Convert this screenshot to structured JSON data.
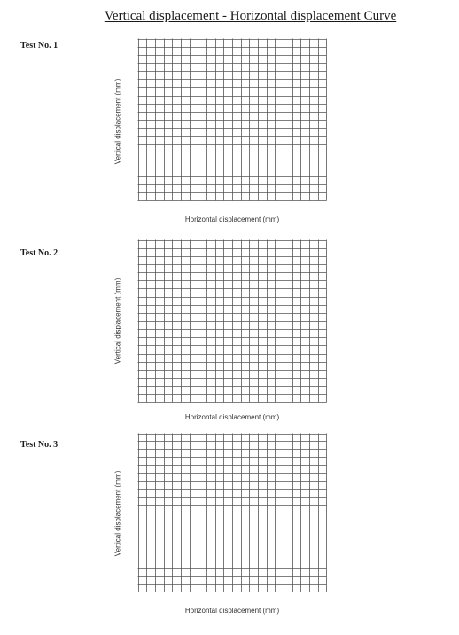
{
  "document": {
    "title": "Vertical displacement - Horizontal displacement Curve"
  },
  "tests": [
    {
      "label": "Test No. 1",
      "y_axis_label": "Vertical displacement (mm)",
      "x_axis_label": "Horizontal displacement (mm)"
    },
    {
      "label": "Test No. 2",
      "y_axis_label": "Vertical displacement (mm)",
      "x_axis_label": "Horizontal displacement (mm)"
    },
    {
      "label": "Test No. 3",
      "y_axis_label": "Vertical displacement (mm)",
      "x_axis_label": "Horizontal displacement (mm)"
    }
  ],
  "grid": {
    "columns": 22,
    "rows": 20,
    "line_color": "#555555"
  }
}
